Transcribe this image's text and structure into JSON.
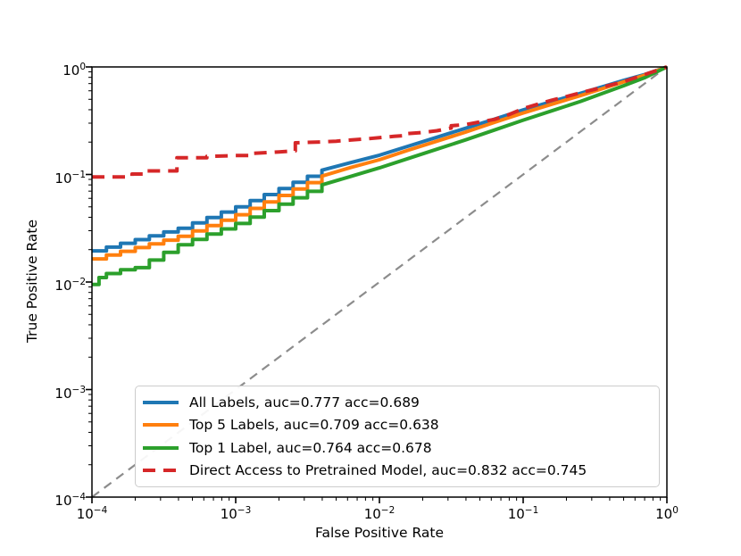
{
  "figure": {
    "background": "#ffffff",
    "text_color": "#000000"
  },
  "chart_data": {
    "type": "line",
    "title": "",
    "xlabel": "False Positive Rate",
    "ylabel": "True Positive Rate",
    "xscale": "log",
    "yscale": "log",
    "xlim": [
      0.0001,
      1.0
    ],
    "ylim": [
      0.0001,
      1.0
    ],
    "grid": false,
    "legend_position": "lower center",
    "x_tick_exponents": [
      -4,
      -3,
      -2,
      -1,
      0
    ],
    "y_tick_exponents": [
      0,
      -1,
      -2,
      -3,
      -4
    ],
    "minor_tick_multiples": [
      2,
      3,
      4,
      5,
      6,
      7,
      8,
      9
    ],
    "reference_line": {
      "name": "chance-diagonal",
      "color": "#8c8c8c",
      "style": "dashed",
      "dash": "10 7",
      "width": 2.2,
      "points": [
        [
          0.0001,
          0.0001
        ],
        [
          1.0,
          1.0
        ]
      ]
    },
    "series": [
      {
        "name": "all-labels",
        "label": "All Labels, auc=0.777 acc=0.689",
        "auc": 0.777,
        "acc": 0.689,
        "color": "#1f77b4",
        "style": "solid",
        "width": 4,
        "points": [
          [
            0.0001,
            0.0195
          ],
          [
            0.000126,
            0.0195
          ],
          [
            0.000126,
            0.0211
          ],
          [
            0.000158,
            0.0211
          ],
          [
            0.000158,
            0.0229
          ],
          [
            0.0002,
            0.0229
          ],
          [
            0.0002,
            0.0248
          ],
          [
            0.000251,
            0.0248
          ],
          [
            0.000251,
            0.0269
          ],
          [
            0.000316,
            0.0269
          ],
          [
            0.000316,
            0.0292
          ],
          [
            0.000398,
            0.0292
          ],
          [
            0.000398,
            0.0316
          ],
          [
            0.000501,
            0.0316
          ],
          [
            0.000501,
            0.0355
          ],
          [
            0.000631,
            0.0355
          ],
          [
            0.000631,
            0.0398
          ],
          [
            0.000794,
            0.0398
          ],
          [
            0.000794,
            0.0447
          ],
          [
            0.001,
            0.0447
          ],
          [
            0.001,
            0.0501
          ],
          [
            0.00126,
            0.0501
          ],
          [
            0.00126,
            0.0571
          ],
          [
            0.00158,
            0.0571
          ],
          [
            0.00158,
            0.065
          ],
          [
            0.002,
            0.065
          ],
          [
            0.002,
            0.0741
          ],
          [
            0.00251,
            0.0741
          ],
          [
            0.00251,
            0.0845
          ],
          [
            0.00316,
            0.0845
          ],
          [
            0.00316,
            0.0962
          ],
          [
            0.00398,
            0.0962
          ],
          [
            0.00398,
            0.1096
          ],
          [
            0.00631,
            0.129
          ],
          [
            0.01,
            0.151
          ],
          [
            0.0158,
            0.183
          ],
          [
            0.0251,
            0.222
          ],
          [
            0.0398,
            0.269
          ],
          [
            0.0631,
            0.327
          ],
          [
            0.1,
            0.398
          ],
          [
            0.158,
            0.476
          ],
          [
            0.251,
            0.569
          ],
          [
            0.355,
            0.653
          ],
          [
            0.501,
            0.75
          ],
          [
            0.708,
            0.853
          ],
          [
            1.0,
            1.0
          ]
        ]
      },
      {
        "name": "top-5-labels",
        "label": "Top 5 Labels, auc=0.709 acc=0.638",
        "auc": 0.709,
        "acc": 0.638,
        "color": "#ff7f0e",
        "style": "solid",
        "width": 4,
        "points": [
          [
            0.0001,
            0.0164
          ],
          [
            0.000126,
            0.0164
          ],
          [
            0.000126,
            0.0178
          ],
          [
            0.000158,
            0.0178
          ],
          [
            0.000158,
            0.0193
          ],
          [
            0.0002,
            0.0193
          ],
          [
            0.0002,
            0.0209
          ],
          [
            0.000251,
            0.0209
          ],
          [
            0.000251,
            0.0226
          ],
          [
            0.000316,
            0.0226
          ],
          [
            0.000316,
            0.0245
          ],
          [
            0.000398,
            0.0245
          ],
          [
            0.000398,
            0.0266
          ],
          [
            0.000501,
            0.0266
          ],
          [
            0.000501,
            0.0299
          ],
          [
            0.000631,
            0.0299
          ],
          [
            0.000631,
            0.0335
          ],
          [
            0.000794,
            0.0335
          ],
          [
            0.000794,
            0.0376
          ],
          [
            0.001,
            0.0376
          ],
          [
            0.001,
            0.0422
          ],
          [
            0.00126,
            0.0422
          ],
          [
            0.00126,
            0.0484
          ],
          [
            0.00158,
            0.0484
          ],
          [
            0.00158,
            0.0556
          ],
          [
            0.002,
            0.0556
          ],
          [
            0.002,
            0.0638
          ],
          [
            0.00251,
            0.0638
          ],
          [
            0.00251,
            0.0733
          ],
          [
            0.00316,
            0.0733
          ],
          [
            0.00316,
            0.0841
          ],
          [
            0.00398,
            0.0841
          ],
          [
            0.00398,
            0.0966
          ],
          [
            0.00631,
            0.116
          ],
          [
            0.01,
            0.137
          ],
          [
            0.0158,
            0.168
          ],
          [
            0.0251,
            0.204
          ],
          [
            0.0398,
            0.248
          ],
          [
            0.0631,
            0.305
          ],
          [
            0.1,
            0.373
          ],
          [
            0.158,
            0.45
          ],
          [
            0.251,
            0.542
          ],
          [
            0.355,
            0.627
          ],
          [
            0.501,
            0.728
          ],
          [
            0.708,
            0.842
          ],
          [
            1.0,
            1.0
          ]
        ]
      },
      {
        "name": "top-1-label",
        "label": "Top 1 Label, auc=0.764 acc=0.678",
        "auc": 0.764,
        "acc": 0.678,
        "color": "#2ca02c",
        "style": "solid",
        "width": 4,
        "points": [
          [
            0.0001,
            0.0095
          ],
          [
            0.000112,
            0.0095
          ],
          [
            0.000112,
            0.011
          ],
          [
            0.000126,
            0.011
          ],
          [
            0.000126,
            0.012
          ],
          [
            0.000158,
            0.012
          ],
          [
            0.000158,
            0.013
          ],
          [
            0.0002,
            0.013
          ],
          [
            0.0002,
            0.0136
          ],
          [
            0.000251,
            0.0136
          ],
          [
            0.000251,
            0.016
          ],
          [
            0.000316,
            0.016
          ],
          [
            0.000316,
            0.0189
          ],
          [
            0.000398,
            0.0189
          ],
          [
            0.000398,
            0.0222
          ],
          [
            0.000501,
            0.0222
          ],
          [
            0.000501,
            0.0249
          ],
          [
            0.000631,
            0.0249
          ],
          [
            0.000631,
            0.0279
          ],
          [
            0.000794,
            0.0279
          ],
          [
            0.000794,
            0.0312
          ],
          [
            0.001,
            0.0312
          ],
          [
            0.001,
            0.035
          ],
          [
            0.00126,
            0.035
          ],
          [
            0.00126,
            0.0402
          ],
          [
            0.00158,
            0.0402
          ],
          [
            0.00158,
            0.0461
          ],
          [
            0.002,
            0.0461
          ],
          [
            0.002,
            0.0529
          ],
          [
            0.00251,
            0.0529
          ],
          [
            0.00251,
            0.0607
          ],
          [
            0.00316,
            0.0607
          ],
          [
            0.00316,
            0.0697
          ],
          [
            0.00398,
            0.0697
          ],
          [
            0.00398,
            0.08
          ],
          [
            0.00631,
            0.0959
          ],
          [
            0.01,
            0.1151
          ],
          [
            0.0158,
            0.1406
          ],
          [
            0.0251,
            0.1718
          ],
          [
            0.0398,
            0.2099
          ],
          [
            0.0631,
            0.2588
          ],
          [
            0.1,
            0.3199
          ],
          [
            0.158,
            0.3908
          ],
          [
            0.251,
            0.4786
          ],
          [
            0.355,
            0.5662
          ],
          [
            0.501,
            0.6699
          ],
          [
            0.708,
            0.8
          ],
          [
            1.0,
            1.0
          ]
        ]
      },
      {
        "name": "direct-access-pretrained",
        "label": "Direct Access to Pretrained Model, auc=0.832 acc=0.745",
        "auc": 0.832,
        "acc": 0.745,
        "color": "#d62728",
        "style": "dashed",
        "dash": "14 9",
        "width": 4,
        "points": [
          [
            0.0001,
            0.095
          ],
          [
            0.00019,
            0.095
          ],
          [
            0.00019,
            0.101
          ],
          [
            0.00024,
            0.101
          ],
          [
            0.00024,
            0.108
          ],
          [
            0.00039,
            0.108
          ],
          [
            0.00039,
            0.143
          ],
          [
            0.00063,
            0.143
          ],
          [
            0.00063,
            0.147
          ],
          [
            0.001,
            0.15
          ],
          [
            0.0013,
            0.15
          ],
          [
            0.0013,
            0.157
          ],
          [
            0.002,
            0.162
          ],
          [
            0.0026,
            0.166
          ],
          [
            0.0026,
            0.197
          ],
          [
            0.004,
            0.201
          ],
          [
            0.005,
            0.204
          ],
          [
            0.0063,
            0.209
          ],
          [
            0.008,
            0.214
          ],
          [
            0.01,
            0.22
          ],
          [
            0.0126,
            0.226
          ],
          [
            0.0158,
            0.231
          ],
          [
            0.0158,
            0.24
          ],
          [
            0.02,
            0.246
          ],
          [
            0.0251,
            0.255
          ],
          [
            0.0316,
            0.27
          ],
          [
            0.0316,
            0.284
          ],
          [
            0.0398,
            0.291
          ],
          [
            0.0501,
            0.308
          ],
          [
            0.0631,
            0.325
          ],
          [
            0.0794,
            0.36
          ],
          [
            0.1,
            0.41
          ],
          [
            0.126,
            0.45
          ],
          [
            0.158,
            0.49
          ],
          [
            0.2,
            0.53
          ],
          [
            0.251,
            0.575
          ],
          [
            0.316,
            0.62
          ],
          [
            0.398,
            0.675
          ],
          [
            0.501,
            0.73
          ],
          [
            0.631,
            0.81
          ],
          [
            0.794,
            0.9
          ],
          [
            1.0,
            1.0
          ]
        ]
      }
    ]
  }
}
